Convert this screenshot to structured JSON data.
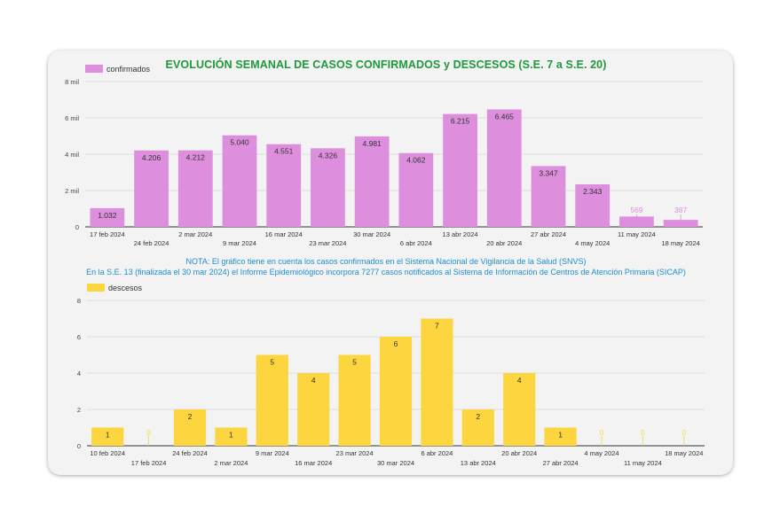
{
  "title": "EVOLUCIÓN SEMANAL DE CASOS CONFIRMADOS y DESCESOS (S.E. 7 a S.E. 20)",
  "note": {
    "line1": "NOTA:  El gráfico tiene en cuenta los casos confirmados en el Sistema Nacional de Vigilancia de la Salud (SNVS)",
    "line2": "En la S.E. 13 (finalizada el 30 mar 2024) el Informe Epidemiológico incorpora 7277 casos notificados al Sistema de Información de Centros de Atención Primaria (SICAP)"
  },
  "colors": {
    "confirmados": "#dd8fdd",
    "descesos": "#fcd53f",
    "title": "#1e9a3c",
    "note": "#1c8fd0"
  },
  "chart_data": [
    {
      "type": "bar",
      "legend_placement": "top-left",
      "grid": true,
      "ylim": [
        0,
        8000
      ],
      "yticks": [
        0,
        2000,
        4000,
        6000,
        8000
      ],
      "ytick_labels": [
        "0",
        "2 mil",
        "4 mil",
        "6 mil",
        "8 mil"
      ],
      "categories": [
        "17 feb 2024",
        "24 feb 2024",
        "2 mar 2024",
        "9 mar 2024",
        "16 mar 2024",
        "23 mar 2024",
        "30 mar 2024",
        "6 abr 2024",
        "13 abr 2024",
        "20 abr 2024",
        "27 abr 2024",
        "4 may 2024",
        "11 may 2024",
        "18 may 2024"
      ],
      "series": [
        {
          "name": "confirmados",
          "values": [
            1032,
            4206,
            4212,
            5040,
            4551,
            4326,
            4981,
            4062,
            6215,
            6465,
            3347,
            2343,
            569,
            387
          ],
          "labels": [
            "1.032",
            "4.206",
            "4.212",
            "5.040",
            "4.551",
            "4.326",
            "4.981",
            "4.062",
            "6.215",
            "6.465",
            "3.347",
            "2.343",
            "569",
            "387"
          ]
        }
      ]
    },
    {
      "type": "bar",
      "legend_placement": "top-left",
      "grid": true,
      "ylim": [
        0,
        8
      ],
      "yticks": [
        0,
        2,
        4,
        6,
        8
      ],
      "ytick_labels": [
        "0",
        "2",
        "4",
        "6",
        "8"
      ],
      "categories": [
        "10 feb 2024",
        "17 feb 2024",
        "24 feb 2024",
        "2 mar 2024",
        "9 mar 2024",
        "16 mar 2024",
        "23 mar 2024",
        "30 mar 2024",
        "6 abr 2024",
        "13 abr 2024",
        "20 abr 2024",
        "27 abr 2024",
        "4 may 2024",
        "11 may 2024",
        "18 may 2024"
      ],
      "series": [
        {
          "name": "descesos",
          "values": [
            1,
            0,
            2,
            1,
            5,
            4,
            5,
            6,
            7,
            2,
            4,
            1,
            0,
            0,
            0
          ],
          "labels": [
            "1",
            "0",
            "2",
            "1",
            "5",
            "4",
            "5",
            "6",
            "7",
            "2",
            "4",
            "1",
            "0",
            "0",
            "0"
          ]
        }
      ]
    }
  ]
}
